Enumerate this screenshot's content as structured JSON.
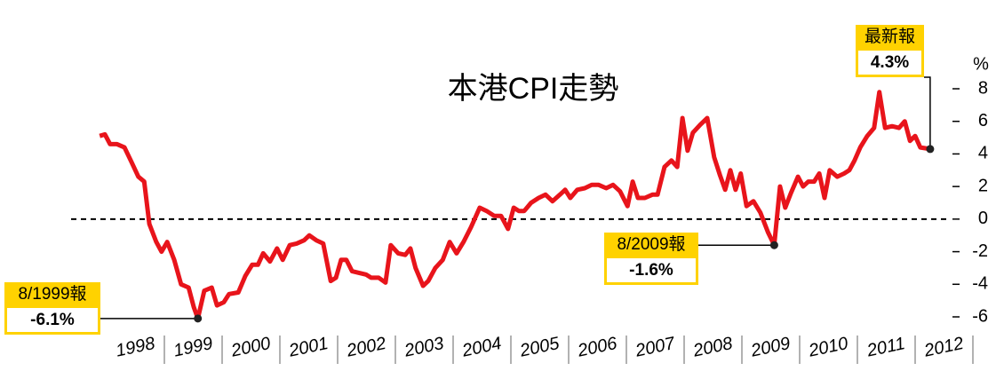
{
  "chart_data": {
    "type": "line",
    "title": "本港CPI走勢",
    "y_unit": "%",
    "x": [
      1997.88,
      1997.97,
      1998.06,
      1998.18,
      1998.31,
      1998.43,
      1998.55,
      1998.65,
      1998.74,
      1998.86,
      1998.95,
      1999.05,
      1999.17,
      1999.29,
      1999.42,
      1999.51,
      1999.58,
      1999.69,
      1999.82,
      1999.91,
      2000.03,
      2000.12,
      2000.28,
      2000.4,
      2000.52,
      2000.62,
      2000.71,
      2000.83,
      2000.95,
      2001.05,
      2001.17,
      2001.29,
      2001.42,
      2001.51,
      2001.63,
      2001.75,
      2001.88,
      2001.97,
      2002.06,
      2002.15,
      2002.25,
      2002.37,
      2002.49,
      2002.58,
      2002.71,
      2002.83,
      2002.92,
      2003.05,
      2003.17,
      2003.26,
      2003.35,
      2003.48,
      2003.57,
      2003.69,
      2003.82,
      2003.94,
      2004.06,
      2004.18,
      2004.31,
      2004.46,
      2004.58,
      2004.71,
      2004.83,
      2004.95,
      2005.05,
      2005.14,
      2005.23,
      2005.35,
      2005.48,
      2005.6,
      2005.72,
      2005.85,
      2005.94,
      2006.03,
      2006.15,
      2006.28,
      2006.4,
      2006.52,
      2006.65,
      2006.77,
      2006.89,
      2007.02,
      2007.11,
      2007.2,
      2007.32,
      2007.45,
      2007.54,
      2007.66,
      2007.78,
      2007.88,
      2007.97,
      2008.06,
      2008.15,
      2008.28,
      2008.4,
      2008.52,
      2008.62,
      2008.71,
      2008.8,
      2008.89,
      2008.98,
      2009.08,
      2009.2,
      2009.32,
      2009.45,
      2009.56,
      2009.66,
      2009.75,
      2009.85,
      2009.97,
      2010.06,
      2010.15,
      2010.25,
      2010.34,
      2010.43,
      2010.52,
      2010.65,
      2010.77,
      2010.86,
      2010.95,
      2011.05,
      2011.17,
      2011.29,
      2011.38,
      2011.48,
      2011.6,
      2011.72,
      2011.82,
      2011.91,
      2012.0,
      2012.09,
      2012.26
    ],
    "series": [
      {
        "color": "#e8141b",
        "values": [
          5.1,
          5.2,
          4.6,
          4.6,
          4.4,
          3.5,
          2.6,
          2.3,
          -0.3,
          -1.4,
          -2.0,
          -1.4,
          -2.5,
          -4.0,
          -4.2,
          -5.4,
          -6.1,
          -4.4,
          -4.2,
          -5.3,
          -5.1,
          -4.6,
          -4.5,
          -3.5,
          -2.8,
          -2.8,
          -2.1,
          -2.6,
          -1.8,
          -2.5,
          -1.6,
          -1.5,
          -1.3,
          -1.0,
          -1.3,
          -1.5,
          -3.8,
          -3.6,
          -2.5,
          -2.5,
          -3.2,
          -3.3,
          -3.4,
          -3.6,
          -3.6,
          -3.9,
          -1.6,
          -2.1,
          -2.2,
          -1.8,
          -3.0,
          -4.1,
          -3.8,
          -3.0,
          -2.5,
          -1.4,
          -2.1,
          -1.4,
          -0.5,
          0.7,
          0.5,
          0.2,
          0.2,
          -0.6,
          0.7,
          0.5,
          0.5,
          1.0,
          1.3,
          1.5,
          1.1,
          1.5,
          1.8,
          1.3,
          1.8,
          1.9,
          2.1,
          2.1,
          1.9,
          2.1,
          1.7,
          0.8,
          2.3,
          1.3,
          1.3,
          1.5,
          1.5,
          3.2,
          3.6,
          3.2,
          6.2,
          4.2,
          5.3,
          5.8,
          6.2,
          3.8,
          2.7,
          1.8,
          3.0,
          1.8,
          2.8,
          0.8,
          1.1,
          0.4,
          -0.8,
          -1.6,
          2.0,
          0.7,
          1.6,
          2.6,
          2.0,
          2.3,
          2.3,
          2.8,
          1.3,
          3.0,
          2.6,
          2.8,
          3.0,
          3.6,
          4.4,
          5.1,
          5.6,
          7.8,
          5.6,
          5.7,
          5.6,
          6.0,
          4.8,
          5.1,
          4.4,
          4.3
        ]
      }
    ],
    "xlim": [
      1998,
      2013
    ],
    "xticks": [
      {
        "value": 1998.5,
        "label": "1998"
      },
      {
        "value": 1999.5,
        "label": "1999"
      },
      {
        "value": 2000.5,
        "label": "2000"
      },
      {
        "value": 2001.5,
        "label": "2001"
      },
      {
        "value": 2002.5,
        "label": "2002"
      },
      {
        "value": 2003.5,
        "label": "2003"
      },
      {
        "value": 2004.5,
        "label": "2004"
      },
      {
        "value": 2005.5,
        "label": "2005"
      },
      {
        "value": 2006.5,
        "label": "2006"
      },
      {
        "value": 2007.5,
        "label": "2007"
      },
      {
        "value": 2008.5,
        "label": "2008"
      },
      {
        "value": 2009.5,
        "label": "2009"
      },
      {
        "value": 2010.5,
        "label": "2010"
      },
      {
        "value": 2011.5,
        "label": "2011"
      },
      {
        "value": 2012.5,
        "label": "2012"
      }
    ],
    "ylim": [
      -6,
      8
    ],
    "yticks": [
      -6,
      -4,
      -2,
      0,
      2,
      4,
      6,
      8
    ],
    "annotations": [
      {
        "title": "8/1999報",
        "text": "-6.1%",
        "x": 1999.58,
        "y": -6.1
      },
      {
        "title": "8/2009報",
        "text": "-1.6%",
        "x": 2009.56,
        "y": -1.6
      },
      {
        "title": "最新報",
        "text": "4.3%",
        "x": 2012.26,
        "y": 4.3
      }
    ]
  }
}
